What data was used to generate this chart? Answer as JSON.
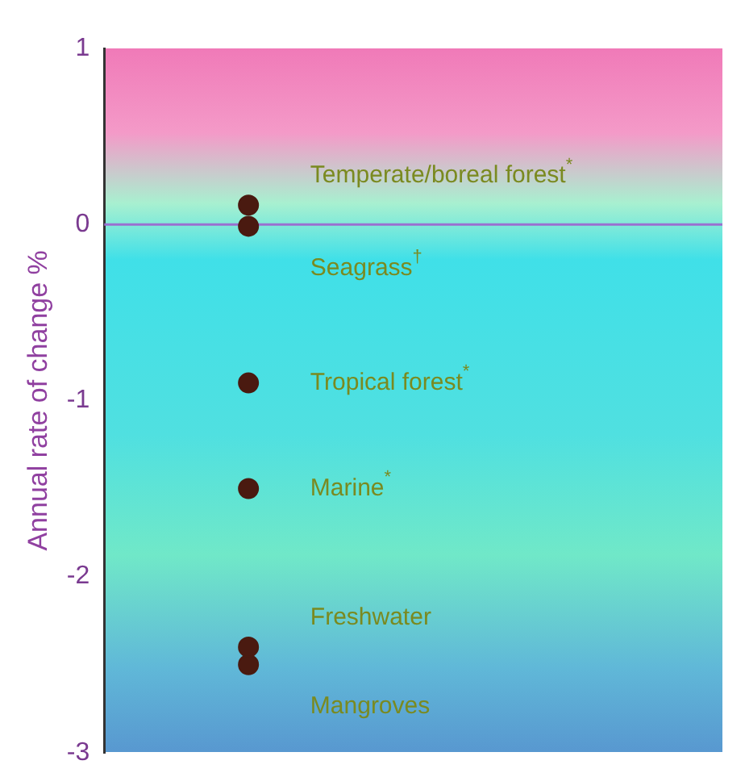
{
  "chart_data": {
    "type": "scatter",
    "ylabel": "Annual rate of change %",
    "categories": [
      null
    ],
    "series": [
      {
        "name": "Temperate/boreal forest$^{*}$",
        "color": "#4a1a10",
        "values": [
          0.11
        ]
      },
      {
        "name": "Seagrass$^{†}$",
        "color": "#4a1a10",
        "values": [
          -0.01
        ]
      },
      {
        "name": "Tropical forest$^{*}$",
        "color": "#4a1a10",
        "values": [
          -0.9
        ]
      },
      {
        "name": "Marine$^{*}$",
        "color": "#4a1a10",
        "values": [
          -1.5
        ]
      },
      {
        "name": "Freshwater",
        "color": "#4a1a10",
        "values": [
          -2.4
        ]
      },
      {
        "name": "Mangroves",
        "color": "#4a1a10",
        "values": [
          -2.5
        ]
      }
    ],
    "ylim": [
      -3,
      1
    ],
    "yticks": [
      -3,
      -2,
      -1,
      0,
      1
    ],
    "tick_labels": "y",
    "grid": false,
    "legend": false,
    "marker": "circle",
    "ref_lines": [
      {
        "axis": "y",
        "value": 0,
        "color": "#9a70d0"
      }
    ]
  }
}
